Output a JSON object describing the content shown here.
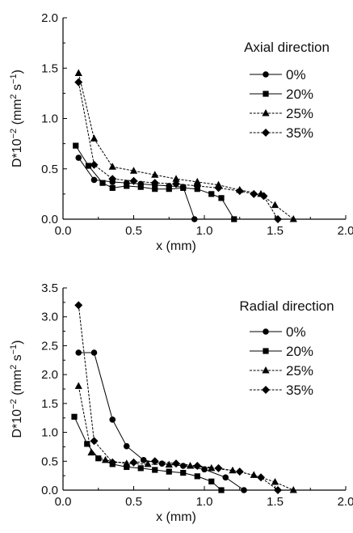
{
  "chart_data": [
    {
      "type": "line",
      "title": "",
      "legend_title": "Axial direction",
      "legend_position": "top-right",
      "xlabel": "x (mm)",
      "ylabel_parts": [
        "D*10",
        "−2",
        " (mm",
        "2",
        " s",
        "−1",
        ")"
      ],
      "xlim": [
        0.0,
        2.0
      ],
      "ylim": [
        0.0,
        2.0
      ],
      "xticks": [
        "0.0",
        "0.5",
        "1.0",
        "1.5",
        "2.0"
      ],
      "yticks": [
        "0.0",
        "0.5",
        "1.0",
        "1.5",
        "2.0"
      ],
      "grid": false,
      "series": [
        {
          "name": "0%",
          "marker": "circle",
          "x": [
            0.11,
            0.22,
            0.35,
            0.45,
            0.55,
            0.65,
            0.75,
            0.85,
            0.93
          ],
          "y": [
            0.61,
            0.39,
            0.37,
            0.36,
            0.35,
            0.34,
            0.33,
            0.32,
            0.0
          ]
        },
        {
          "name": "20%",
          "marker": "square",
          "x": [
            0.09,
            0.18,
            0.28,
            0.35,
            0.45,
            0.55,
            0.65,
            0.75,
            0.85,
            0.95,
            1.05,
            1.12,
            1.21
          ],
          "y": [
            0.73,
            0.53,
            0.36,
            0.31,
            0.33,
            0.32,
            0.3,
            0.3,
            0.31,
            0.3,
            0.25,
            0.21,
            0.0
          ]
        },
        {
          "name": "25%",
          "marker": "triangle",
          "x": [
            0.11,
            0.22,
            0.35,
            0.5,
            0.65,
            0.8,
            0.95,
            1.1,
            1.25,
            1.4,
            1.5,
            1.63
          ],
          "y": [
            1.45,
            0.8,
            0.52,
            0.48,
            0.44,
            0.4,
            0.37,
            0.34,
            0.29,
            0.25,
            0.14,
            0.0
          ]
        },
        {
          "name": "35%",
          "marker": "diamond",
          "x": [
            0.11,
            0.22,
            0.35,
            0.5,
            0.65,
            0.8,
            0.95,
            1.1,
            1.25,
            1.35,
            1.42,
            1.52
          ],
          "y": [
            1.36,
            0.54,
            0.4,
            0.38,
            0.36,
            0.35,
            0.33,
            0.31,
            0.28,
            0.25,
            0.23,
            0.0
          ]
        }
      ]
    },
    {
      "type": "line",
      "title": "",
      "legend_title": "Radial direction",
      "legend_position": "top-right",
      "xlabel": "x (mm)",
      "ylabel_parts": [
        "D*10",
        "−2",
        " (mm",
        "2",
        " s",
        "−1",
        ")"
      ],
      "xlim": [
        0.0,
        2.0
      ],
      "ylim": [
        0.0,
        3.5
      ],
      "xticks": [
        "0.0",
        "0.5",
        "1.0",
        "1.5",
        "2.0"
      ],
      "yticks": [
        "0.0",
        "0.5",
        "1.0",
        "1.5",
        "2.0",
        "2.5",
        "3.0",
        "3.5"
      ],
      "grid": false,
      "series": [
        {
          "name": "0%",
          "marker": "circle",
          "x": [
            0.11,
            0.22,
            0.35,
            0.45,
            0.57,
            0.7,
            0.85,
            1.0,
            1.15,
            1.28
          ],
          "y": [
            2.38,
            2.38,
            1.22,
            0.76,
            0.52,
            0.46,
            0.42,
            0.36,
            0.22,
            0.0
          ]
        },
        {
          "name": "20%",
          "marker": "square",
          "x": [
            0.08,
            0.17,
            0.25,
            0.35,
            0.45,
            0.55,
            0.65,
            0.75,
            0.85,
            0.95,
            1.05,
            1.12
          ],
          "y": [
            1.27,
            0.8,
            0.55,
            0.45,
            0.4,
            0.38,
            0.35,
            0.32,
            0.3,
            0.24,
            0.15,
            0.0
          ]
        },
        {
          "name": "25%",
          "marker": "triangle",
          "x": [
            0.11,
            0.2,
            0.3,
            0.45,
            0.6,
            0.75,
            0.9,
            1.05,
            1.2,
            1.35,
            1.5,
            1.63
          ],
          "y": [
            1.8,
            0.65,
            0.52,
            0.46,
            0.45,
            0.44,
            0.42,
            0.38,
            0.34,
            0.26,
            0.14,
            0.0
          ]
        },
        {
          "name": "35%",
          "marker": "diamond",
          "x": [
            0.11,
            0.22,
            0.35,
            0.5,
            0.65,
            0.8,
            0.95,
            1.1,
            1.25,
            1.4,
            1.52
          ],
          "y": [
            3.2,
            0.85,
            0.48,
            0.48,
            0.5,
            0.46,
            0.42,
            0.38,
            0.32,
            0.22,
            0.0
          ]
        }
      ]
    }
  ]
}
